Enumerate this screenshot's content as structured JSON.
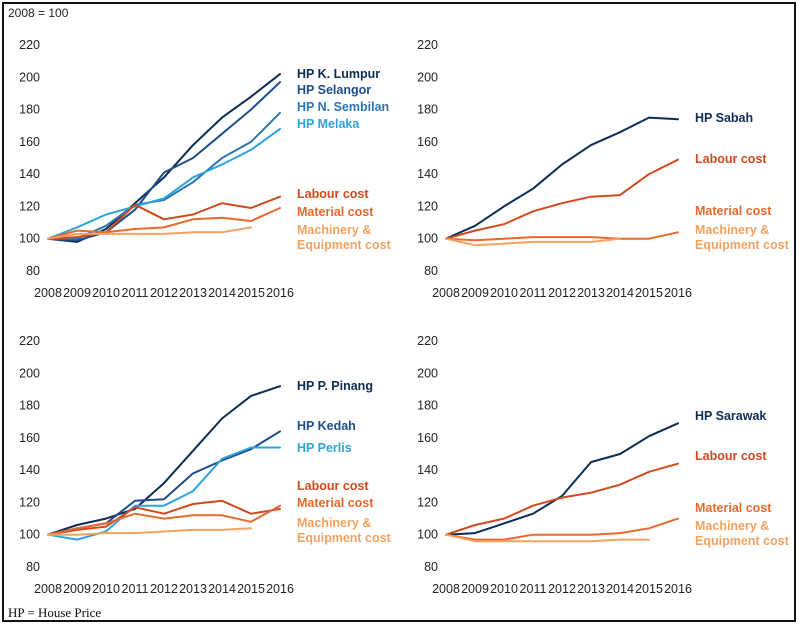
{
  "unit_note": "2008 = 100",
  "footnote": "HP = House Price",
  "colors": {
    "dark_navy": "#0c2d56",
    "mid_navy": "#1f4e8c",
    "blue": "#2e75b6",
    "light_blue": "#2fa3db",
    "orange_red": "#d04a1e",
    "orange": "#e8692d",
    "light_orange": "#f4a161"
  },
  "chart_data": [
    {
      "type": "line",
      "x": [
        2008,
        2009,
        2010,
        2011,
        2012,
        2013,
        2014,
        2015,
        2016
      ],
      "ylim": [
        80,
        220
      ],
      "yticks": [
        80,
        100,
        120,
        140,
        160,
        180,
        200,
        220
      ],
      "series": [
        {
          "name": "HP K. Lumpur",
          "color": "#0c2d56",
          "values": [
            100,
            98,
            106,
            122,
            138,
            158,
            175,
            188,
            202
          ]
        },
        {
          "name": "HP Selangor",
          "color": "#1f4e8c",
          "values": [
            100,
            99,
            104,
            118,
            141,
            150,
            165,
            180,
            197
          ]
        },
        {
          "name": "HP N. Sembilan",
          "color": "#2e75b6",
          "values": [
            100,
            100,
            108,
            121,
            124,
            135,
            150,
            160,
            178
          ]
        },
        {
          "name": "HP Melaka",
          "color": "#2fa3db",
          "values": [
            100,
            107,
            115,
            120,
            125,
            138,
            146,
            155,
            168
          ]
        },
        {
          "name": "Labour cost",
          "color": "#d04a1e",
          "values": [
            100,
            101,
            104,
            121,
            112,
            115,
            122,
            119,
            126
          ]
        },
        {
          "name": "Material cost",
          "color": "#e8692d",
          "values": [
            100,
            105,
            104,
            106,
            107,
            112,
            113,
            111,
            119
          ]
        },
        {
          "name": "Machinery & Equipment cost",
          "color": "#f4a161",
          "values": [
            100,
            103,
            103,
            103,
            103,
            104,
            104,
            107,
            null
          ]
        }
      ]
    },
    {
      "type": "line",
      "x": [
        2008,
        2009,
        2010,
        2011,
        2012,
        2013,
        2014,
        2015,
        2016
      ],
      "ylim": [
        80,
        220
      ],
      "yticks": [
        80,
        100,
        120,
        140,
        160,
        180,
        200,
        220
      ],
      "series": [
        {
          "name": "HP Sabah",
          "color": "#0c2d56",
          "values": [
            100,
            108,
            120,
            131,
            146,
            158,
            166,
            175,
            174
          ]
        },
        {
          "name": "Labour cost",
          "color": "#d04a1e",
          "values": [
            100,
            105,
            109,
            117,
            122,
            126,
            127,
            140,
            149
          ]
        },
        {
          "name": "Material cost",
          "color": "#e8692d",
          "values": [
            100,
            99,
            100,
            101,
            101,
            101,
            100,
            100,
            104
          ]
        },
        {
          "name": "Machinery & Equipment cost",
          "color": "#f4a161",
          "values": [
            100,
            96,
            97,
            98,
            98,
            98,
            100,
            null,
            null
          ]
        }
      ]
    },
    {
      "type": "line",
      "x": [
        2008,
        2009,
        2010,
        2011,
        2012,
        2013,
        2014,
        2015,
        2016
      ],
      "ylim": [
        80,
        220
      ],
      "yticks": [
        80,
        100,
        120,
        140,
        160,
        180,
        200,
        220
      ],
      "series": [
        {
          "name": "HP P. Pinang",
          "color": "#0c2d56",
          "values": [
            100,
            106,
            110,
            116,
            132,
            152,
            172,
            186,
            192
          ]
        },
        {
          "name": "HP Kedah",
          "color": "#1f4e8c",
          "values": [
            100,
            104,
            107,
            121,
            122,
            138,
            146,
            153,
            164
          ]
        },
        {
          "name": "HP Perlis",
          "color": "#2fa3db",
          "values": [
            100,
            97,
            102,
            118,
            118,
            127,
            147,
            154,
            154
          ]
        },
        {
          "name": "Labour cost",
          "color": "#d04a1e",
          "values": [
            100,
            103,
            105,
            117,
            113,
            119,
            121,
            113,
            116
          ]
        },
        {
          "name": "Material cost",
          "color": "#e8692d",
          "values": [
            100,
            104,
            107,
            113,
            110,
            112,
            112,
            108,
            118
          ]
        },
        {
          "name": "Machinery & Equipment cost",
          "color": "#f4a161",
          "values": [
            100,
            100,
            101,
            101,
            102,
            103,
            103,
            104,
            null
          ]
        }
      ]
    },
    {
      "type": "line",
      "x": [
        2008,
        2009,
        2010,
        2011,
        2012,
        2013,
        2014,
        2015,
        2016
      ],
      "ylim": [
        80,
        220
      ],
      "yticks": [
        80,
        100,
        120,
        140,
        160,
        180,
        200,
        220
      ],
      "series": [
        {
          "name": "HP Sarawak",
          "color": "#0c2d56",
          "values": [
            100,
            101,
            107,
            113,
            124,
            145,
            150,
            161,
            169
          ]
        },
        {
          "name": "Labour cost",
          "color": "#d04a1e",
          "values": [
            100,
            106,
            110,
            118,
            123,
            126,
            131,
            139,
            144
          ]
        },
        {
          "name": "Material cost",
          "color": "#e8692d",
          "values": [
            100,
            97,
            97,
            100,
            100,
            100,
            101,
            104,
            110
          ]
        },
        {
          "name": "Machinery & Equipment cost",
          "color": "#f4a161",
          "values": [
            100,
            96,
            96,
            96,
            96,
            96,
            97,
            97,
            null
          ]
        }
      ]
    }
  ],
  "legend_labels": [
    [
      [
        "HP K. Lumpur"
      ],
      [
        "HP Selangor"
      ],
      [
        "HP N. Sembilan"
      ],
      [
        "HP Melaka"
      ],
      [
        "Labour cost"
      ],
      [
        "Material cost"
      ],
      [
        "Machinery &",
        "Equipment cost"
      ]
    ],
    [
      [
        "HP Sabah"
      ],
      [
        "Labour cost"
      ],
      [
        "Material cost"
      ],
      [
        "Machinery &",
        "Equipment cost"
      ]
    ],
    [
      [
        "HP P. Pinang"
      ],
      [
        "HP Kedah"
      ],
      [
        "HP Perlis"
      ],
      [
        "Labour cost"
      ],
      [
        "Material cost"
      ],
      [
        "Machinery &",
        "Equipment cost"
      ]
    ],
    [
      [
        "HP Sarawak"
      ],
      [
        "Labour cost"
      ],
      [
        "Material cost"
      ],
      [
        "Machinery &",
        "Equipment cost"
      ]
    ]
  ]
}
